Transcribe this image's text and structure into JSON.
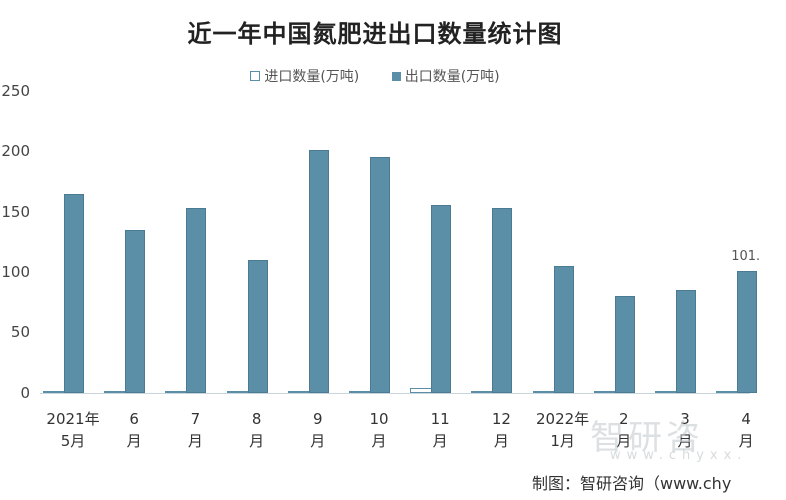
{
  "title": "近一年中国氮肥进出口数量统计图",
  "legend": {
    "import_label": "进口数量(万吨)",
    "export_label": "出口数量(万吨)"
  },
  "y_ticks": [
    "250",
    "200",
    "150",
    "100",
    "50",
    "0"
  ],
  "x_labels": [
    {
      "line1": "2021年",
      "line2": "5月"
    },
    {
      "line1": "6",
      "line2": "月"
    },
    {
      "line1": "7",
      "line2": "月"
    },
    {
      "line1": "8",
      "line2": "月"
    },
    {
      "line1": "9",
      "line2": "月"
    },
    {
      "line1": "10",
      "line2": "月"
    },
    {
      "line1": "11",
      "line2": "月"
    },
    {
      "line1": "12",
      "line2": "月"
    },
    {
      "line1": "2022年",
      "line2": "1月"
    },
    {
      "line1": "2",
      "line2": "月"
    },
    {
      "line1": "3",
      "line2": "月"
    },
    {
      "line1": "4",
      "line2": "月"
    }
  ],
  "data_label": "101.",
  "watermark": "智研咨",
  "watermark_url": "www.chyxx.",
  "source": "制图：智研咨询（www.chy",
  "colors": {
    "export": "#5b8fa8",
    "import_border": "#5b8fa8"
  },
  "chart_data": {
    "type": "bar",
    "title": "近一年中国氮肥进出口数量统计图",
    "xlabel": "",
    "ylabel": "",
    "ylim": [
      0,
      250
    ],
    "y_ticks": [
      0,
      50,
      100,
      150,
      200,
      250
    ],
    "grid": false,
    "legend_position": "top",
    "categories": [
      "2021年5月",
      "6月",
      "7月",
      "8月",
      "9月",
      "10月",
      "11月",
      "12月",
      "2022年1月",
      "2月",
      "3月",
      "4月"
    ],
    "series": [
      {
        "name": "进口数量(万吨)",
        "values": [
          1,
          1,
          1,
          1,
          1,
          1,
          4,
          1,
          1,
          1,
          1,
          1
        ]
      },
      {
        "name": "出口数量(万吨)",
        "values": [
          165,
          135,
          153,
          110,
          201,
          195,
          156,
          153,
          105,
          80,
          85,
          101
        ]
      }
    ],
    "annotations": [
      "101.x (4月 出口, partially visible)"
    ]
  }
}
